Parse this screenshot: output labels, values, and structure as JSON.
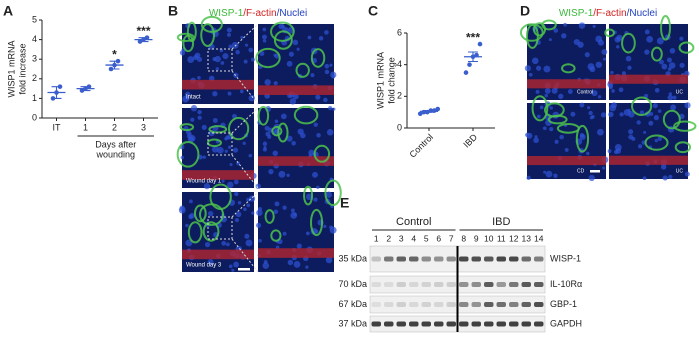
{
  "chart_data": [
    {
      "type": "dot",
      "panel": "A",
      "ylabel": [
        "WISP1 mRNA",
        "fold increase"
      ],
      "categories": [
        "IT",
        "1",
        "2",
        "3"
      ],
      "x_group_label": [
        "Days after",
        "wounding"
      ],
      "points": [
        [
          1.0,
          1.3,
          1.6
        ],
        [
          1.4,
          1.5,
          1.6
        ],
        [
          2.5,
          2.7,
          2.9
        ],
        [
          3.9,
          4.0,
          4.1
        ]
      ],
      "means": [
        1.3,
        1.5,
        2.7,
        4.0
      ],
      "errors": [
        0.3,
        0.1,
        0.2,
        0.1
      ],
      "annotations": [
        null,
        null,
        "*",
        "***"
      ],
      "color": "#3a5fcd",
      "ylim": [
        0,
        5
      ],
      "yticks": [
        0,
        1,
        2,
        3,
        4,
        5
      ]
    },
    {
      "type": "dot",
      "panel": "C",
      "ylabel": [
        "WISP1 mRNA",
        "fold change"
      ],
      "categories": [
        "Control",
        "IBD"
      ],
      "points": [
        [
          0.9,
          1.0,
          1.0,
          1.1,
          1.1,
          1.2
        ],
        [
          3.5,
          4.0,
          4.5,
          4.6,
          5.3
        ]
      ],
      "means": [
        1.05,
        4.5
      ],
      "errors": [
        0.05,
        0.3
      ],
      "annotations": [
        null,
        "***"
      ],
      "color": "#3a5fcd",
      "ylim": [
        0,
        6
      ],
      "yticks": [
        0,
        2,
        4,
        6
      ]
    }
  ],
  "panel_b": {
    "label": "B",
    "title": [
      "WISP-1",
      "/F-actin",
      "/Nuclei"
    ],
    "title_colors": [
      "#3cb83c",
      "#d62020",
      "#2040c0"
    ],
    "images": [
      "Intact",
      "Wound day 1",
      "Wound day 3"
    ]
  },
  "panel_d": {
    "label": "D",
    "title": [
      "WISP-1",
      "/F-actin",
      "/Nuclei"
    ],
    "title_colors": [
      "#3cb83c",
      "#d62020",
      "#2040c0"
    ],
    "images": [
      "Control",
      "UC",
      "CD",
      "UC"
    ]
  },
  "panel_e": {
    "label": "E",
    "groups": [
      "Control",
      "IBD"
    ],
    "lanes": [
      "1",
      "2",
      "3",
      "4",
      "5",
      "6",
      "7",
      "8",
      "9",
      "10",
      "11",
      "12",
      "13",
      "14"
    ],
    "markers": [
      "35 kDa",
      "70 kDa",
      "67 kDa",
      "37 kDa"
    ],
    "proteins": [
      "WISP-1",
      "IL-10Rα",
      "GBP-1",
      "GAPDH"
    ]
  }
}
